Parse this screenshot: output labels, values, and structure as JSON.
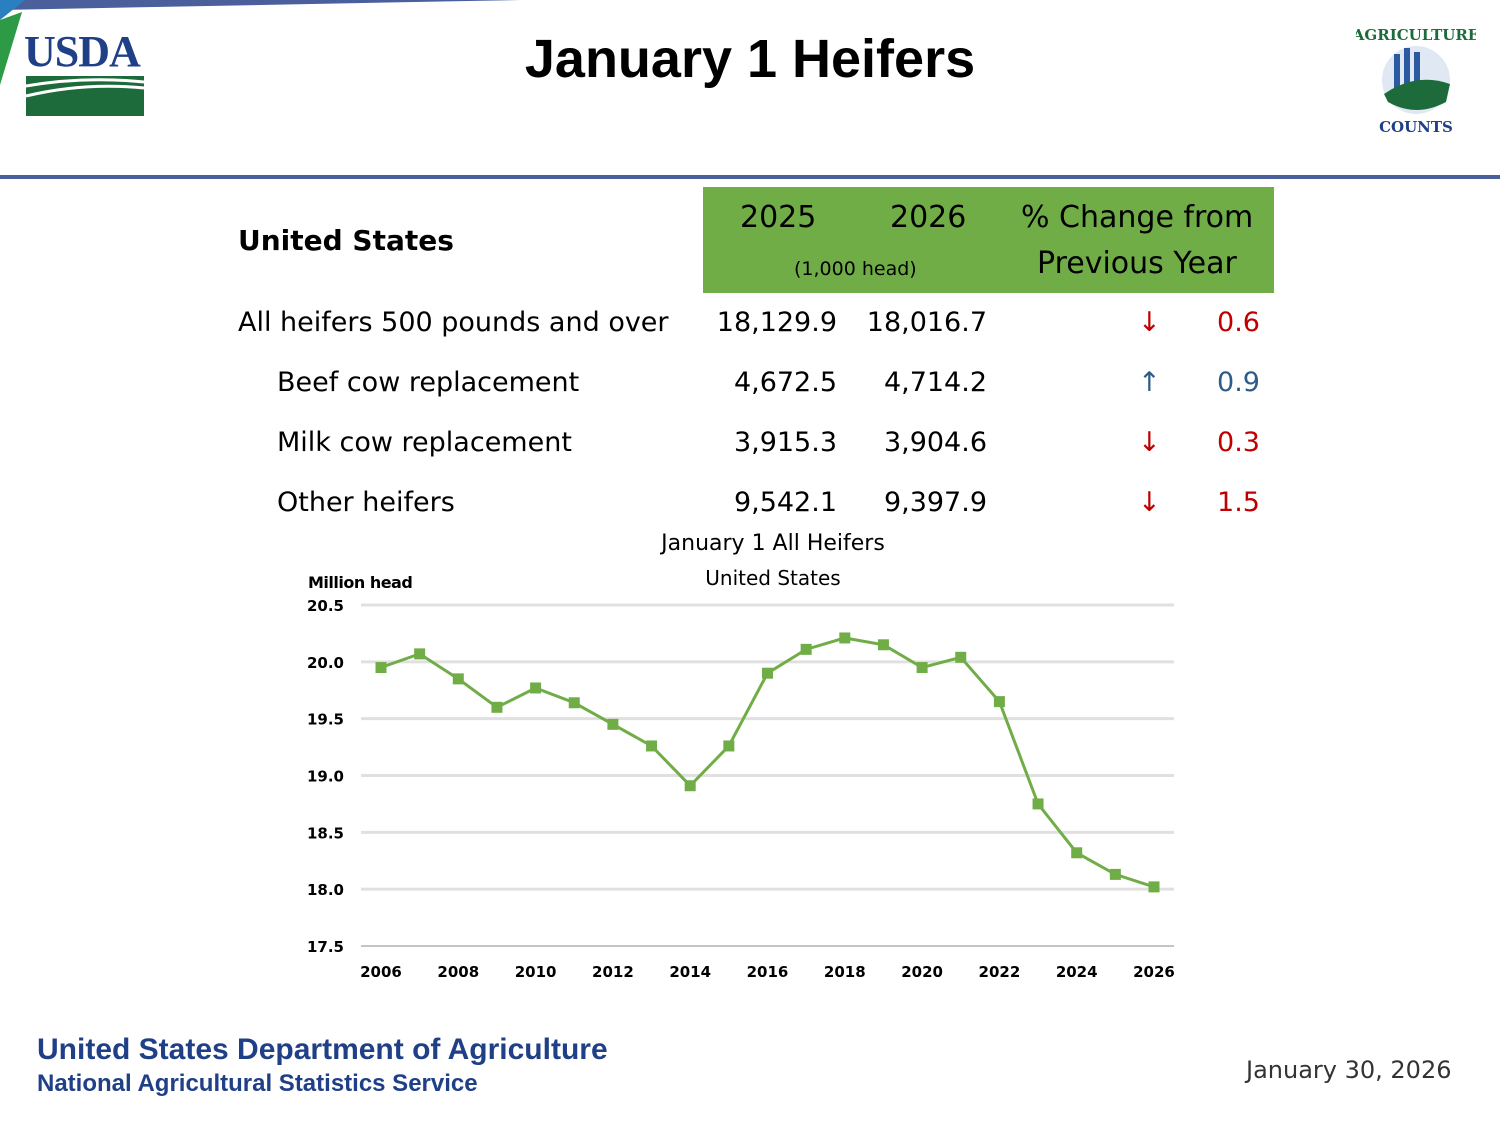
{
  "header": {
    "title": "January 1 Heifers",
    "logo_left": "USDA",
    "logo_right": "AGRICULTURE COUNTS"
  },
  "table": {
    "region": "United States",
    "col_2025": "2025",
    "col_2026": "2026",
    "units": "(1,000 head)",
    "col_change_line1": "% Change from",
    "col_change_line2": "Previous Year",
    "rows": [
      {
        "label": "All heifers 500 pounds and over",
        "v2025": "18,129.9",
        "v2026": "18,016.7",
        "direction": "down",
        "arrow": "↓",
        "change": "0.6"
      },
      {
        "label": "Beef cow replacement",
        "v2025": "4,672.5",
        "v2026": "4,714.2",
        "direction": "up",
        "arrow": "↑",
        "change": "0.9"
      },
      {
        "label": "Milk cow replacement",
        "v2025": "3,915.3",
        "v2026": "3,904.6",
        "direction": "down",
        "arrow": "↓",
        "change": "0.3"
      },
      {
        "label": "Other heifers",
        "v2025": "9,542.1",
        "v2026": "9,397.9",
        "direction": "down",
        "arrow": "↓",
        "change": "1.5"
      }
    ]
  },
  "colors": {
    "header_green": "#70ad47",
    "line": "#70ad47",
    "down": "#c00000",
    "up": "#2e5c8a",
    "brand_blue": "#1f3f86"
  },
  "chart_data": {
    "type": "line",
    "title": "January 1 All Heifers",
    "subtitle": "United States",
    "ylabel": "Million head",
    "xlabel": "",
    "ylim": [
      17.5,
      20.5
    ],
    "yticks": [
      "20.5",
      "20.0",
      "19.5",
      "19.0",
      "18.5",
      "18.0",
      "17.5"
    ],
    "ytick_values": [
      20.5,
      20.0,
      19.5,
      19.0,
      18.5,
      18.0,
      17.5
    ],
    "xticks": [
      "2006",
      "2008",
      "2010",
      "2012",
      "2014",
      "2016",
      "2018",
      "2020",
      "2022",
      "2024",
      "2026"
    ],
    "grid": true,
    "x": [
      2006,
      2007,
      2008,
      2009,
      2010,
      2011,
      2012,
      2013,
      2014,
      2015,
      2016,
      2017,
      2018,
      2019,
      2020,
      2021,
      2022,
      2023,
      2024,
      2025,
      2026
    ],
    "values": [
      19.95,
      20.07,
      19.85,
      19.6,
      19.77,
      19.64,
      19.45,
      19.26,
      18.91,
      19.26,
      19.9,
      20.11,
      20.21,
      20.15,
      19.95,
      20.04,
      19.65,
      18.75,
      18.32,
      18.13,
      18.02
    ]
  },
  "footer": {
    "dept": "United States Department of Agriculture",
    "agency": "National Agricultural Statistics Service",
    "date": "January 30, 2026"
  }
}
